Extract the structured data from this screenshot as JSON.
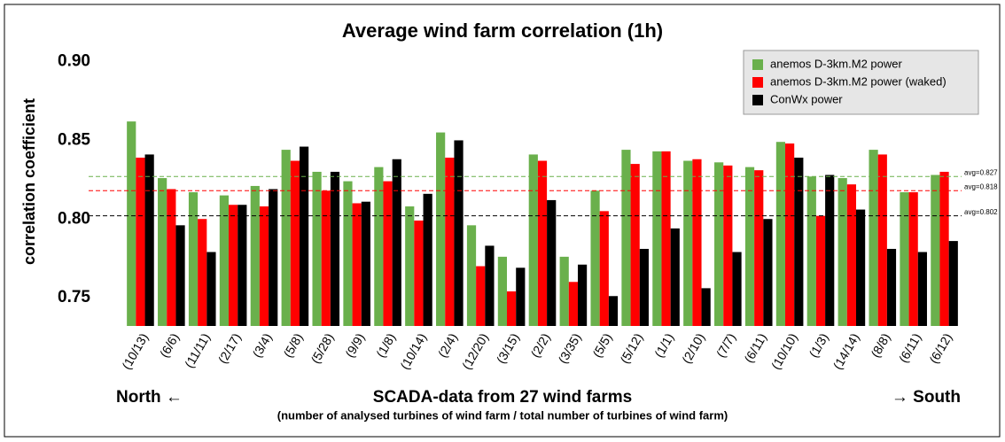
{
  "chart_data": {
    "type": "bar",
    "title": "Average wind farm correlation (1h)",
    "y_label": "correlation coefficient",
    "x_label": "SCADA-data from 27 wind farms",
    "x_sublabel": "(number of analysed turbines of wind farm / total number of turbines of wind farm)",
    "x_label_left": "North ←",
    "x_label_right": "→ South",
    "categories": [
      "(10/13)",
      "(6/6)",
      "(11/11)",
      "(2/17)",
      "(3/4)",
      "(5/8)",
      "(5/28)",
      "(9/9)",
      "(1/8)",
      "(10/14)",
      "(2/4)",
      "(12/20)",
      "(3/15)",
      "(2/2)",
      "(3/35)",
      "(5/5)",
      "(5/12)",
      "(1/1)",
      "(2/10)",
      "(7/7)",
      "(6/11)",
      "(10/10)",
      "(1/3)",
      "(14/14)",
      "(8/8)",
      "(6/11)",
      "(6/12)"
    ],
    "series": [
      {
        "name": "anemos D-3km.M2 power",
        "color": "#6ab04c",
        "values": [
          0.862,
          0.826,
          0.817,
          0.815,
          0.821,
          0.844,
          0.83,
          0.824,
          0.833,
          0.808,
          0.855,
          0.796,
          0.776,
          0.841,
          0.776,
          0.818,
          0.844,
          0.843,
          0.837,
          0.836,
          0.833,
          0.849,
          0.827,
          0.826,
          0.844,
          0.817,
          0.828
        ]
      },
      {
        "name": "anemos D-3km.M2 power (waked)",
        "color": "#ff0000",
        "values": [
          0.839,
          0.819,
          0.8,
          0.809,
          0.808,
          0.837,
          0.818,
          0.81,
          0.824,
          0.799,
          0.839,
          0.77,
          0.754,
          0.837,
          0.76,
          0.805,
          0.835,
          0.843,
          0.838,
          0.834,
          0.831,
          0.848,
          0.802,
          0.822,
          0.841,
          0.817,
          0.83
        ]
      },
      {
        "name": "ConWx power",
        "color": "#000000",
        "values": [
          0.841,
          0.796,
          0.779,
          0.809,
          0.819,
          0.846,
          0.83,
          0.811,
          0.838,
          0.816,
          0.85,
          0.783,
          0.769,
          0.812,
          0.771,
          0.751,
          0.781,
          0.794,
          0.756,
          0.779,
          0.8,
          0.839,
          0.828,
          0.806,
          0.781,
          0.779,
          0.786
        ]
      }
    ],
    "reference_lines": [
      {
        "value": 0.827,
        "label": "avg=0.827",
        "color": "#6ab04c"
      },
      {
        "value": 0.818,
        "label": "avg=0.818",
        "color": "#ff0000"
      },
      {
        "value": 0.802,
        "label": "avg=0.802",
        "color": "#000000"
      }
    ],
    "ylim": [
      0.732,
      0.915
    ],
    "yticks": [
      0.75,
      {
        "value": 0.8,
        "label": "0.80"
      },
      0.85,
      {
        "value": 0.9,
        "label": "0.90"
      }
    ],
    "legend": "top-right",
    "grid": false
  }
}
